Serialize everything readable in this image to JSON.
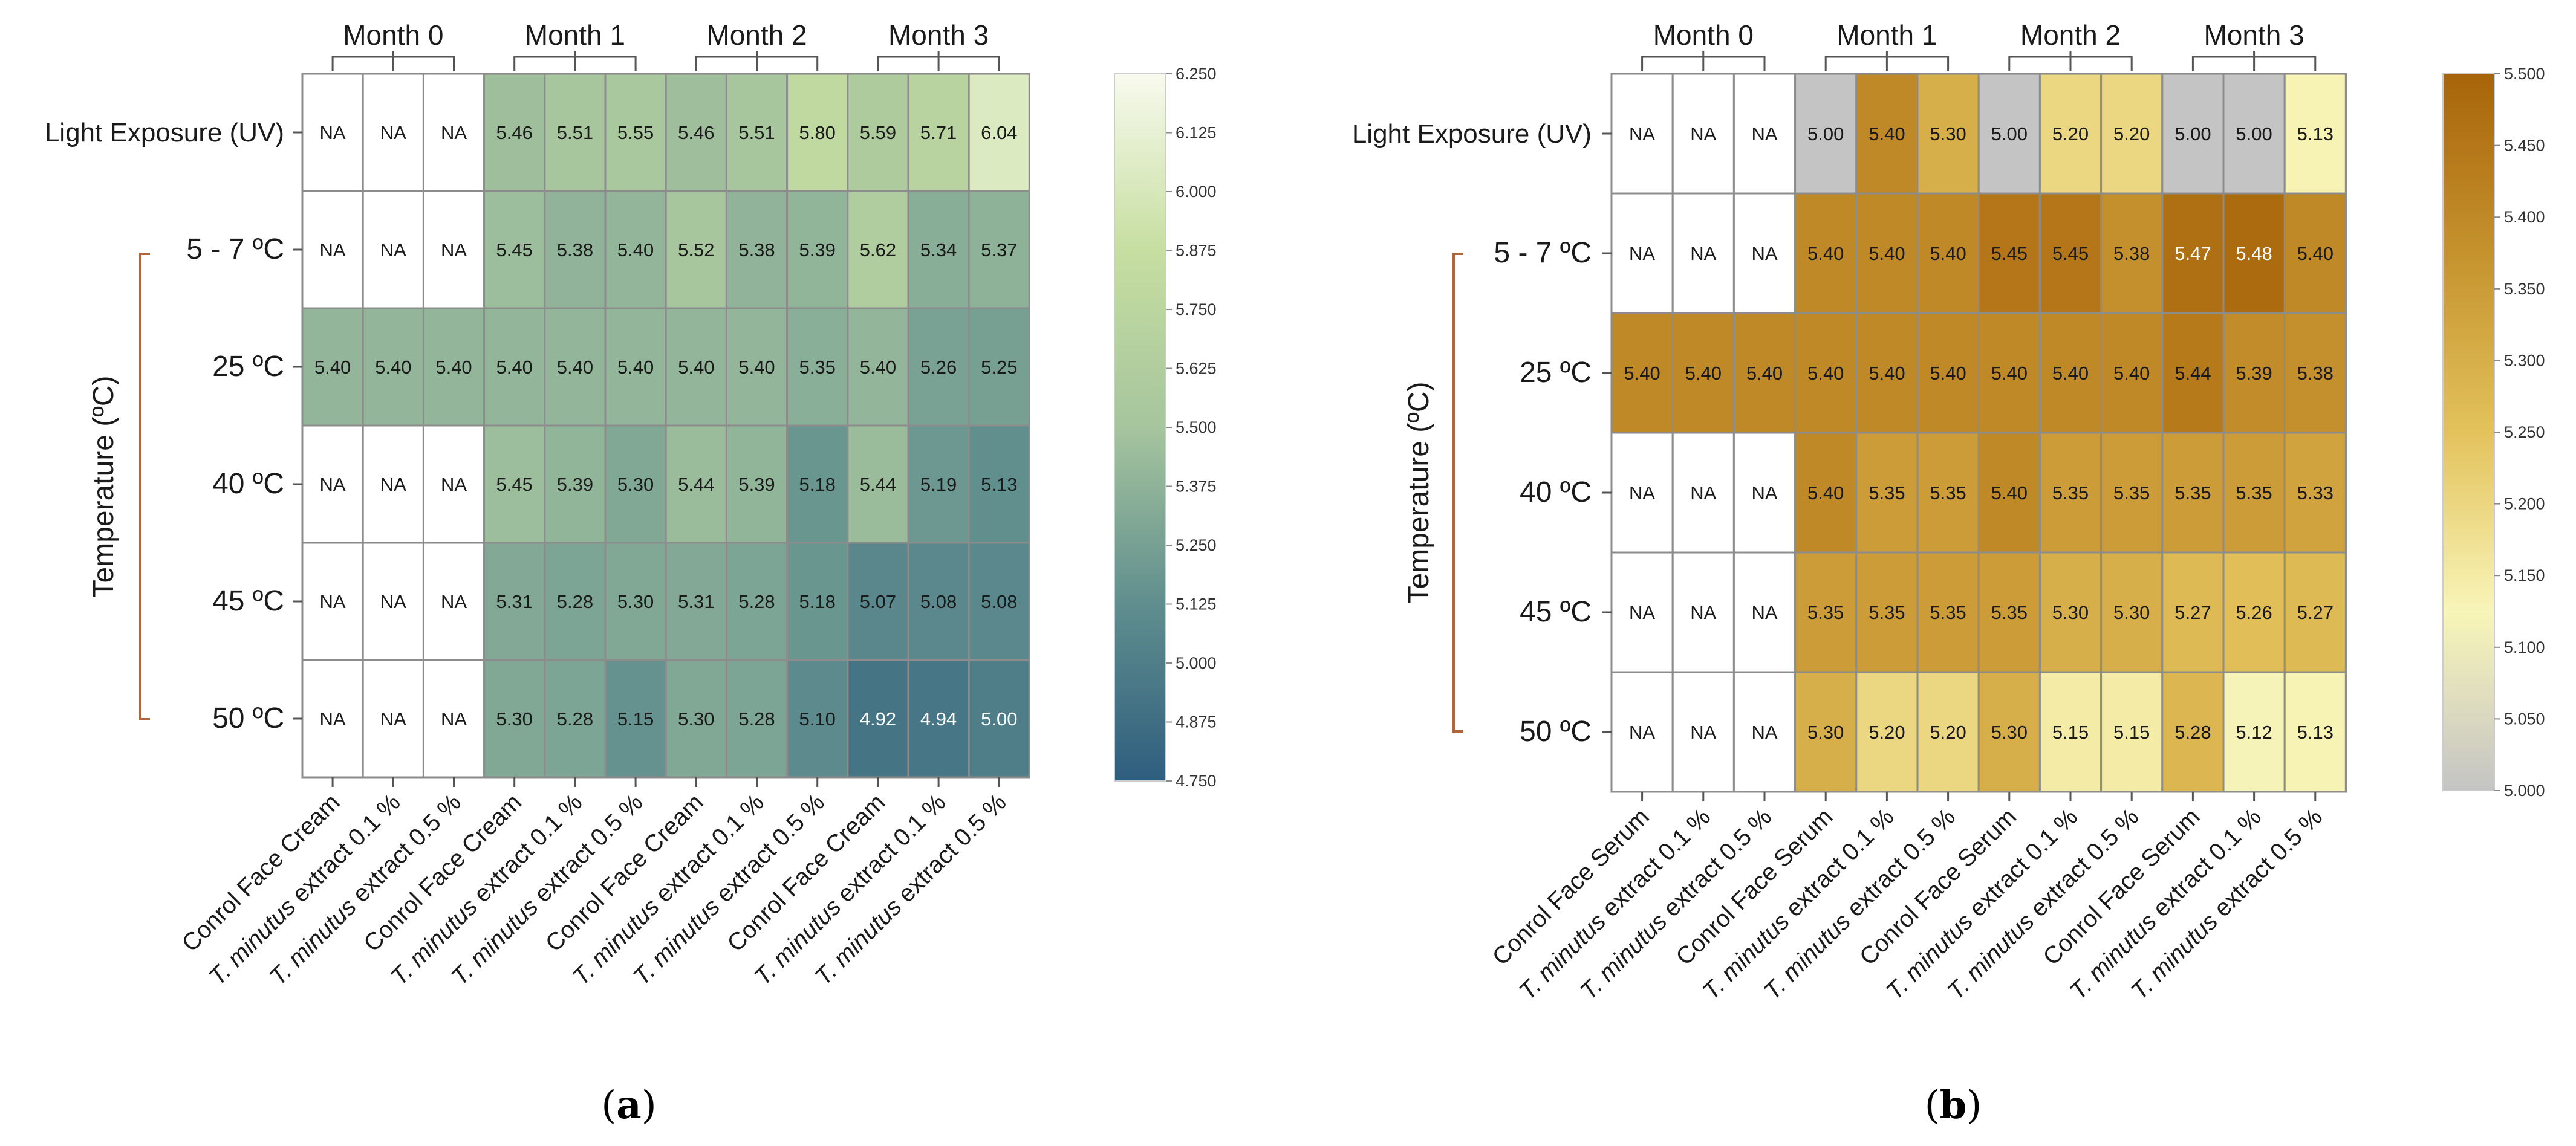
{
  "chart_data": [
    {
      "type": "heatmap",
      "panel_label": "(a)",
      "panel_letter": "a",
      "groups": [
        "Month 0",
        "Month 1",
        "Month 2",
        "Month 3"
      ],
      "columns": [
        {
          "plain": "Conrol Face Cream",
          "italic": ""
        },
        {
          "plain": " extract 0.1 %",
          "italic": "T. minutus"
        },
        {
          "plain": " extract 0.5 %",
          "italic": "T. minutus"
        },
        {
          "plain": "Conrol Face Cream",
          "italic": ""
        },
        {
          "plain": " extract 0.1 %",
          "italic": "T. minutus"
        },
        {
          "plain": " extract 0.5 %",
          "italic": "T. minutus"
        },
        {
          "plain": "Conrol Face Cream",
          "italic": ""
        },
        {
          "plain": " extract 0.1 %",
          "italic": "T. minutus"
        },
        {
          "plain": " extract 0.5 %",
          "italic": "T. minutus"
        },
        {
          "plain": "Conrol Face Cream",
          "italic": ""
        },
        {
          "plain": " extract 0.1 %",
          "italic": "T. minutus"
        },
        {
          "plain": " extract 0.5 %",
          "italic": "T. minutus"
        }
      ],
      "rows": [
        "Light Exposure (UV)",
        "5 - 7 ºC",
        "25 ºC",
        "40 ºC",
        "45 ºC",
        "50 ºC"
      ],
      "ylabel": "Temperature (ºC)",
      "values": [
        [
          null,
          null,
          null,
          5.46,
          5.51,
          5.55,
          5.46,
          5.51,
          5.8,
          5.59,
          5.71,
          6.04
        ],
        [
          null,
          null,
          null,
          5.45,
          5.38,
          5.4,
          5.52,
          5.38,
          5.39,
          5.62,
          5.34,
          5.37
        ],
        [
          5.4,
          5.4,
          5.4,
          5.4,
          5.4,
          5.4,
          5.4,
          5.4,
          5.35,
          5.4,
          5.26,
          5.25
        ],
        [
          null,
          null,
          null,
          5.45,
          5.39,
          5.3,
          5.44,
          5.39,
          5.18,
          5.44,
          5.19,
          5.13
        ],
        [
          null,
          null,
          null,
          5.31,
          5.28,
          5.3,
          5.31,
          5.28,
          5.18,
          5.07,
          5.08,
          5.08
        ],
        [
          null,
          null,
          null,
          5.3,
          5.28,
          5.15,
          5.3,
          5.28,
          5.1,
          4.92,
          4.94,
          5.0
        ]
      ],
      "na_text": "NA",
      "colorbar": {
        "min": 4.75,
        "max": 6.25,
        "ticks": [
          "6.250",
          "6.125",
          "6.000",
          "5.875",
          "5.750",
          "5.625",
          "5.500",
          "5.375",
          "5.250",
          "5.125",
          "5.000",
          "4.875",
          "4.750"
        ],
        "colors": [
          "#2e5e7e",
          "#608e8e",
          "#a6c59e",
          "#c6dea0",
          "#f8faee"
        ]
      },
      "light_text_below": 5.0
    },
    {
      "type": "heatmap",
      "panel_label": "(b)",
      "panel_letter": "b",
      "groups": [
        "Month 0",
        "Month 1",
        "Month 2",
        "Month 3"
      ],
      "columns": [
        {
          "plain": "Conrol Face Serum",
          "italic": ""
        },
        {
          "plain": " extract 0.1 %",
          "italic": "T. minutus"
        },
        {
          "plain": " extract 0.5 %",
          "italic": "T. minutus"
        },
        {
          "plain": "Conrol Face Serum",
          "italic": ""
        },
        {
          "plain": " extract 0.1 %",
          "italic": "T. minutus"
        },
        {
          "plain": " extract 0.5 %",
          "italic": "T. minutus"
        },
        {
          "plain": "Conrol Face Serum",
          "italic": ""
        },
        {
          "plain": " extract 0.1 %",
          "italic": "T. minutus"
        },
        {
          "plain": " extract 0.5 %",
          "italic": "T. minutus"
        },
        {
          "plain": "Conrol Face Serum",
          "italic": ""
        },
        {
          "plain": " extract 0.1 %",
          "italic": "T. minutus"
        },
        {
          "plain": " extract 0.5 %",
          "italic": "T. minutus"
        }
      ],
      "rows": [
        "Light Exposure (UV)",
        "5 - 7 ºC",
        "25 ºC",
        "40 ºC",
        "45 ºC",
        "50 ºC"
      ],
      "ylabel": "Temperature (ºC)",
      "values": [
        [
          null,
          null,
          null,
          5.0,
          5.4,
          5.3,
          5.0,
          5.2,
          5.2,
          5.0,
          5.0,
          5.13
        ],
        [
          null,
          null,
          null,
          5.4,
          5.4,
          5.4,
          5.45,
          5.45,
          5.38,
          5.47,
          5.48,
          5.4
        ],
        [
          5.4,
          5.4,
          5.4,
          5.4,
          5.4,
          5.4,
          5.4,
          5.4,
          5.4,
          5.44,
          5.39,
          5.38
        ],
        [
          null,
          null,
          null,
          5.4,
          5.35,
          5.35,
          5.4,
          5.35,
          5.35,
          5.35,
          5.35,
          5.33
        ],
        [
          null,
          null,
          null,
          5.35,
          5.35,
          5.35,
          5.35,
          5.3,
          5.3,
          5.27,
          5.26,
          5.27
        ],
        [
          null,
          null,
          null,
          5.3,
          5.2,
          5.2,
          5.3,
          5.15,
          5.15,
          5.28,
          5.12,
          5.13
        ]
      ],
      "na_text": "NA",
      "colorbar": {
        "min": 5.0,
        "max": 5.5,
        "ticks": [
          "5.500",
          "5.450",
          "5.400",
          "5.350",
          "5.300",
          "5.250",
          "5.200",
          "5.150",
          "5.100",
          "5.050",
          "5.000"
        ],
        "colors": [
          "#c4c4c4",
          "#f8f5b8",
          "#e3c25c",
          "#c5922e",
          "#a8640a"
        ]
      },
      "light_text_above": 5.465
    }
  ]
}
